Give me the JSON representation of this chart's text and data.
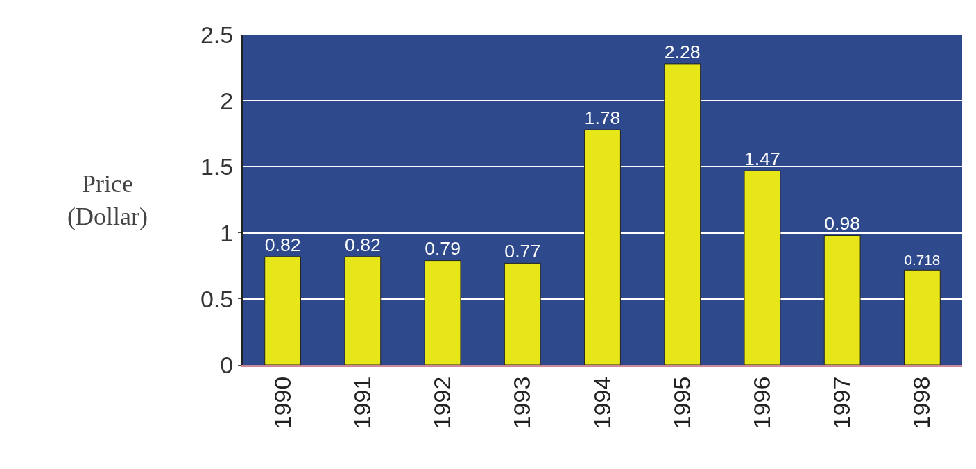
{
  "chart_data": {
    "type": "bar",
    "ylabel": "Price\n(Dollar)",
    "categories": [
      "1990",
      "1991",
      "1992",
      "1993",
      "1994",
      "1995",
      "1996",
      "1997",
      "1998"
    ],
    "values": [
      0.82,
      0.82,
      0.79,
      0.77,
      1.78,
      2.28,
      1.47,
      0.98,
      0.718
    ],
    "color": "#e6e619",
    "ylim": [
      0,
      2.5
    ],
    "yticks": [
      0,
      0.5,
      1,
      1.5,
      2,
      2.5
    ],
    "grid": "y",
    "data_labels": true
  }
}
